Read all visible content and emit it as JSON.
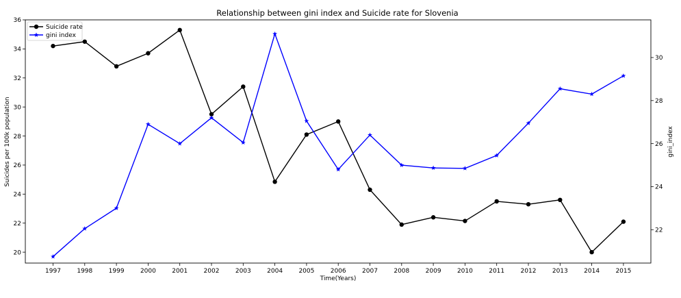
{
  "chart_data": {
    "type": "line",
    "title": "Relationship between gini index and Suicide rate for Slovenia",
    "xlabel": "Time(Years)",
    "ylabel_left": "Suicides per 100k population",
    "ylabel_right": "gini_index",
    "categories": [
      "1997",
      "1998",
      "1999",
      "2000",
      "2001",
      "2002",
      "2003",
      "2004",
      "2005",
      "2006",
      "2007",
      "2008",
      "2009",
      "2010",
      "2011",
      "2012",
      "2013",
      "2014",
      "2015"
    ],
    "y_left_ticks": [
      "20",
      "22",
      "24",
      "26",
      "28",
      "30",
      "32",
      "34",
      "36"
    ],
    "y_right_ticks": [
      "22",
      "24",
      "26",
      "28",
      "30"
    ],
    "ylim_left": [
      19.25,
      36.0
    ],
    "ylim_right": [
      20.45,
      31.75
    ],
    "grid": false,
    "legend_position": "top-left",
    "series": [
      {
        "name": "Suicide rate",
        "axis": "left",
        "color": "#000000",
        "marker": "circle",
        "values": [
          34.2,
          34.5,
          32.8,
          33.7,
          35.3,
          29.5,
          31.4,
          24.85,
          28.1,
          29.0,
          24.3,
          21.9,
          22.4,
          22.15,
          23.5,
          23.3,
          23.6,
          20.0,
          22.1
        ]
      },
      {
        "name": "gini index",
        "axis": "right",
        "color": "#0000ff",
        "marker": "star",
        "values": [
          20.75,
          22.05,
          23.0,
          26.9,
          26.0,
          27.2,
          26.05,
          31.1,
          27.05,
          24.8,
          26.4,
          25.0,
          24.87,
          24.85,
          25.45,
          26.95,
          28.55,
          28.3,
          29.15
        ]
      }
    ]
  }
}
